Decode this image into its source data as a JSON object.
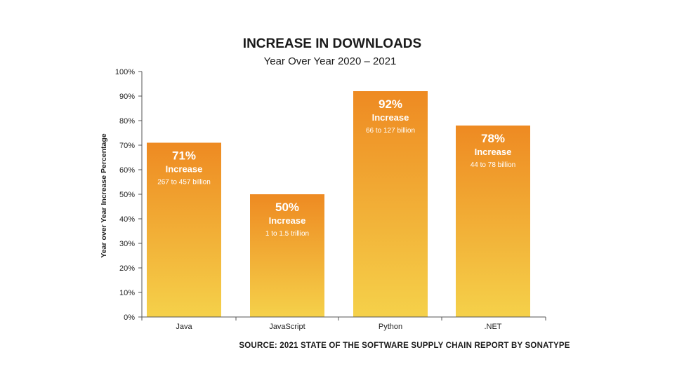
{
  "chart_data": {
    "type": "bar",
    "title": "INCREASE IN DOWNLOADS",
    "subtitle": "Year Over Year 2020 – 2021",
    "ylabel": "Year over Year Increase Percentage",
    "xlabel": "",
    "ylim": [
      0,
      100
    ],
    "yticks": [
      "0%",
      "10%",
      "20%",
      "30%",
      "40%",
      "50%",
      "60%",
      "70%",
      "80%",
      "90%",
      "100%"
    ],
    "categories": [
      "Java",
      "JavaScript",
      "Python",
      ".NET"
    ],
    "values": [
      71,
      50,
      92,
      78
    ],
    "data_labels": [
      {
        "percent": "71%",
        "text": "Increase",
        "detail": "267 to 457 billion"
      },
      {
        "percent": "50%",
        "text": "Increase",
        "detail": "1 to 1.5 trillion"
      },
      {
        "percent": "92%",
        "text": "Increase",
        "detail": "66 to 127 billion"
      },
      {
        "percent": "78%",
        "text": "Increase",
        "detail": "44 to 78 billion"
      }
    ],
    "grid": false,
    "legend": "none",
    "colors": {
      "bar_top": "#ee8a22",
      "bar_bottom": "#f5d14a",
      "axis": "#555555"
    },
    "source": "SOURCE: 2021 STATE OF THE SOFTWARE SUPPLY CHAIN REPORT BY SONATYPE"
  }
}
